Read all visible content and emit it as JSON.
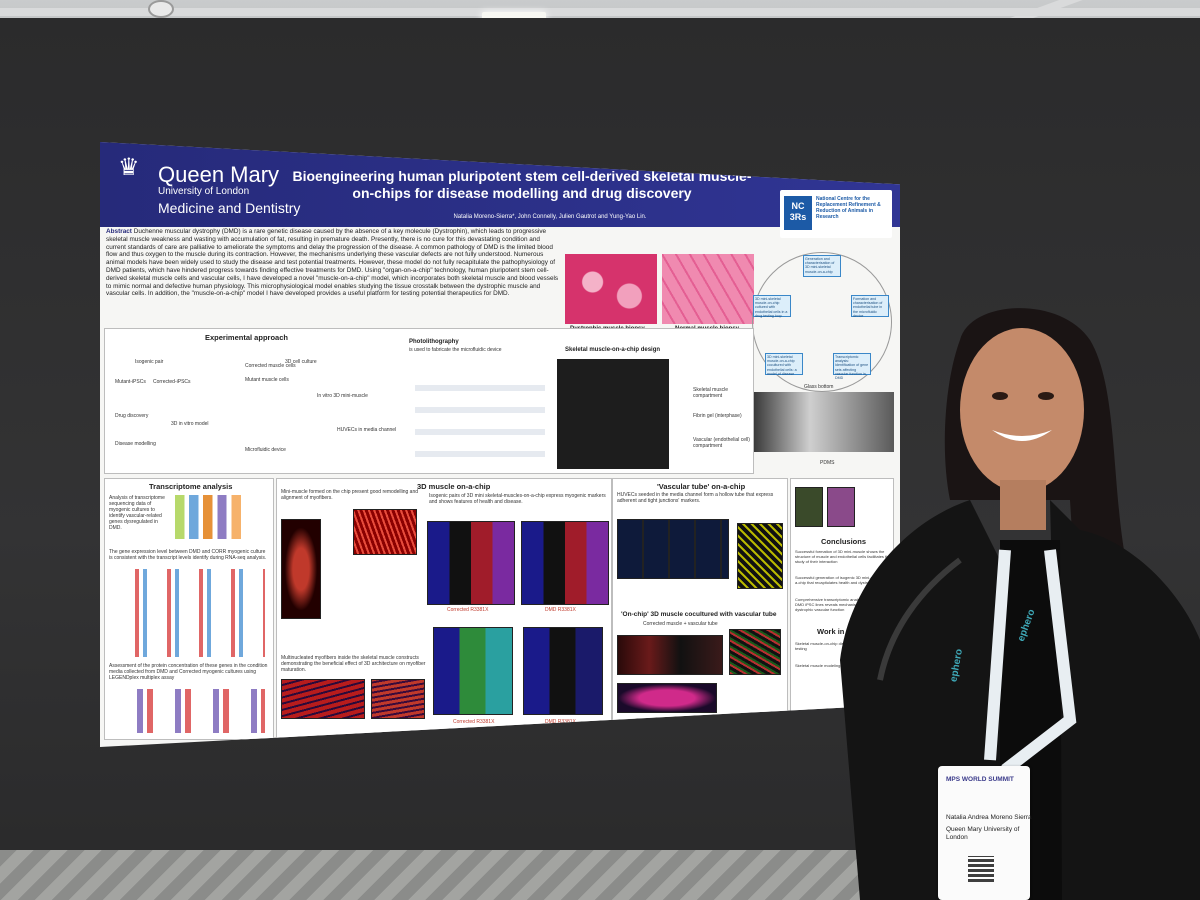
{
  "poster": {
    "logo_name": "Queen Mary",
    "logo_university": "University of London",
    "logo_faculty": "Medicine and Dentistry",
    "title": "Bioengineering human pluripotent stem cell-derived skeletal muscle-on-chips for disease modelling and drug discovery",
    "authors": "Natalia Moreno-Sierra*, John Connelly, Julien Gautrot  and Yung-Yao Lin.",
    "nc3rs_mark": "NC 3Rs",
    "nc3rs_text": "National Centre for the Replacement Refinement & Reduction of Animals in Research",
    "abstract_label": "Abstract",
    "abstract": "Duchenne muscular dystrophy (DMD) is a rare genetic disease caused by the absence of a key molecule (Dystrophin), which leads to progressive skeletal muscle weakness and wasting with accumulation of fat, resulting in premature death. Presently, there is no cure for this devastating condition and current standards of care are palliative to ameliorate the symptoms and delay the progression of the disease. A common pathology of DMD is the limited blood flow and thus oxygen to the muscle during its contraction. However, the mechanisms underlying these vascular defects are not fully understood. Numerous animal models have been widely used to study the disease and test potential treatments. However, these model do not fully recapitulate the pathophysiology of DMD patients, which have hindered progress towards finding effective treatments for DMD. Using \"organ-on-a-chip\" technology, human pluripotent stem cell-derived skeletal muscle cells and vascular cells, I have developed a novel \"muscle-on-a-chip\" model, which incorporates both skeletal muscle and blood vessels to mimic normal and defective human physiology. This microphysiological model enables studying the tissue crosstalk between the dystrophic muscle and vascular cells. In addition, the \"muscle-on-a-chip\" model I have developed provides a useful platform for testing potential therapeutics for DMD.",
    "biopsy_dystrophic": "Dystrophic muscle biopsy",
    "biopsy_normal": "Normal muscle biopsy",
    "cycle": [
      "Generation and characterisation of 3D mini-skeletal muscle-on-a-chip",
      "Formation and characterisation of endothelial tube in the microfluidic device",
      "Transcriptomic analysis: Identification of gene sets affecting vascular function in DMD",
      "3D mini-skeletal muscle-on-a-chip cocultured with endothelial cells: a model of disease",
      "3D mini-skeletal muscle-on-chip cultured with endothelial cells in a drug testing loop"
    ],
    "experimental_title": "Experimental approach",
    "experimental_labels": [
      "Isogenic pair",
      "Mutant-iPSCs",
      "Corrected-iPSCs",
      "Corrected muscle cells",
      "Mutant muscle cells",
      "3D cell culture",
      "In vitro 3D mini-muscle",
      "HUVECs in media channel",
      "Microfluidic device",
      "3D in vitro model",
      "Drug discovery",
      "Disease modelling"
    ],
    "photolitho_title": "Photolithography",
    "photolitho_text": "is used to fabricate the microfluidic device",
    "design_title": "Skeletal muscle-on-a-chip design",
    "design_labels": [
      "Skeletal muscle compartment",
      "Fibrin gel (interphase)",
      "Vascular (endothelial cell) compartment"
    ],
    "glass_bottom": "Glass bottom",
    "pdms": "PDMS",
    "transcriptome_title": "Transcriptome analysis",
    "transcriptome_text1": "Analysis of transcriptome sequencing data of myogenic cultures to identify vascular-related genes dysregulated in DMD.",
    "transcriptome_text2": "The gene expression level between DMD and CORR myogenic culture is consistent with the transcript levels identify during RNA-seq analysis.",
    "transcriptome_text3": "Assessment of the protein concentration of these genes in the condition media collected from DMD and Corrected myogenic cultures using LEGENDplex multiplex assay",
    "muscle3d_title": "3D muscle on-a-chip",
    "muscle3d_text1": "Mini-muscle formed on the chip present good remodelling and alignment of myofibers.",
    "muscle3d_text2": "Isogenic pairs of 3D mini skeletal-muscles-on-a-chip express myogenic markers and shows features of health and disease.",
    "corrected_label": "Corrected R3381X",
    "dmd_label": "DMD R3381X",
    "multinucleated_text": "Multinucleated myofibers inside the skeletal muscle constructs demonstrating the beneficial effect of 3D architecture on myofiber maturation.",
    "vascular_title": "'Vascular tube' on-a-chip",
    "vascular_text": "HUVECs seeded in the media channel form a hollow tube that express adherent and tight junctions' markers.",
    "onchip_title": "'On-chip' 3D muscle cocultured with vascular tube",
    "onchip_sub": "Corrected muscle + vascular tube",
    "conclusion_title": "Conclusions",
    "conclusion_items": [
      "Successful formation of 3D mini-muscle shows the structure of muscle and endothelial cells facilitates the study of their interaction",
      "Successful generation of isogenic 3D mini-muscle-on-a-chip that recapitulates health and dystrophic models",
      "Comprehensive transcriptomic analysis corrected and DMD iPSC lines reveals mechanisms that affect dystrophic vascular function"
    ],
    "future_title": "Work in",
    "future_items": [
      "Skeletal muscle-on-chip disease modelling and drug testing",
      "Skeletal muscle modeling Assess the vascular tube"
    ],
    "summit_title": "MPS WORLD SUMMIT",
    "badge_name": "Natalia Andrea Moreno Sierra",
    "badge_affil": "Queen Mary University of London",
    "lanyard": "ephero"
  },
  "colors": {
    "banner": "#262a7a",
    "accent": "#3a87c8",
    "wall": "#2d2d2e"
  }
}
